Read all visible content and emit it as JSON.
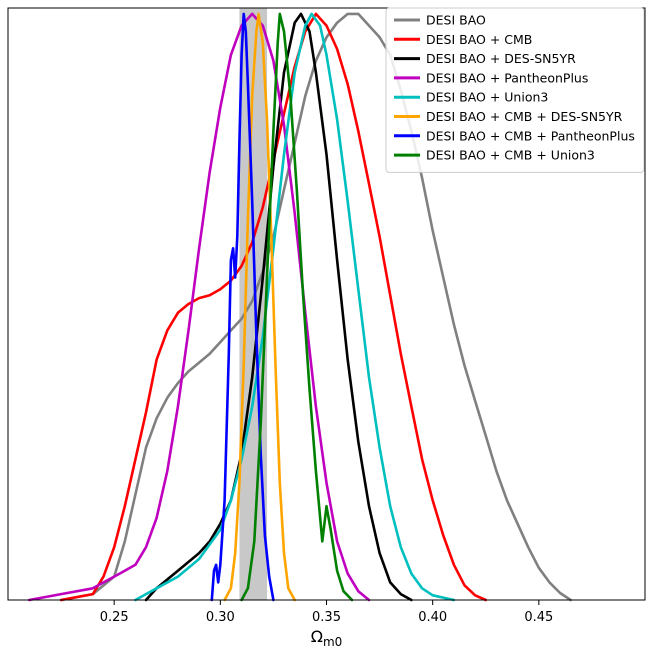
{
  "chart_data": {
    "type": "line",
    "title": "",
    "xlabel": "Ω",
    "xlabel_sub": "m0",
    "ylabel": "",
    "xlim": [
      0.2,
      0.5
    ],
    "ylim": [
      0,
      1.01
    ],
    "xticks": [
      0.25,
      0.3,
      0.35,
      0.4,
      0.45
    ],
    "xtick_labels": [
      "0.25",
      "0.30",
      "0.35",
      "0.40",
      "0.45"
    ],
    "y_axis_visible": false,
    "grid": false,
    "legend_position": "top-right",
    "shaded_band": {
      "x_range": [
        0.309,
        0.322
      ],
      "color": "#c8c8c8"
    },
    "series": [
      {
        "name": "DESI BAO",
        "color": "#808080",
        "points": [
          [
            0.225,
            0.0
          ],
          [
            0.24,
            0.01
          ],
          [
            0.25,
            0.04
          ],
          [
            0.255,
            0.1
          ],
          [
            0.26,
            0.18
          ],
          [
            0.265,
            0.26
          ],
          [
            0.27,
            0.31
          ],
          [
            0.275,
            0.345
          ],
          [
            0.28,
            0.37
          ],
          [
            0.285,
            0.39
          ],
          [
            0.29,
            0.405
          ],
          [
            0.295,
            0.42
          ],
          [
            0.3,
            0.44
          ],
          [
            0.305,
            0.46
          ],
          [
            0.31,
            0.48
          ],
          [
            0.315,
            0.51
          ],
          [
            0.32,
            0.56
          ],
          [
            0.325,
            0.62
          ],
          [
            0.33,
            0.7
          ],
          [
            0.335,
            0.78
          ],
          [
            0.34,
            0.86
          ],
          [
            0.345,
            0.92
          ],
          [
            0.35,
            0.96
          ],
          [
            0.355,
            0.985
          ],
          [
            0.36,
            1.0
          ],
          [
            0.365,
            1.0
          ],
          [
            0.37,
            0.98
          ],
          [
            0.375,
            0.96
          ],
          [
            0.38,
            0.93
          ],
          [
            0.385,
            0.87
          ],
          [
            0.39,
            0.8
          ],
          [
            0.395,
            0.72
          ],
          [
            0.4,
            0.63
          ],
          [
            0.405,
            0.55
          ],
          [
            0.41,
            0.47
          ],
          [
            0.415,
            0.4
          ],
          [
            0.42,
            0.34
          ],
          [
            0.425,
            0.28
          ],
          [
            0.43,
            0.22
          ],
          [
            0.435,
            0.17
          ],
          [
            0.44,
            0.13
          ],
          [
            0.445,
            0.09
          ],
          [
            0.45,
            0.055
          ],
          [
            0.455,
            0.03
          ],
          [
            0.46,
            0.012
          ],
          [
            0.465,
            0.0
          ]
        ]
      },
      {
        "name": "DESI BAO + CMB",
        "color": "#ff0000",
        "points": [
          [
            0.225,
            0.0
          ],
          [
            0.24,
            0.01
          ],
          [
            0.245,
            0.04
          ],
          [
            0.25,
            0.09
          ],
          [
            0.255,
            0.16
          ],
          [
            0.26,
            0.24
          ],
          [
            0.265,
            0.32
          ],
          [
            0.27,
            0.41
          ],
          [
            0.275,
            0.46
          ],
          [
            0.28,
            0.49
          ],
          [
            0.285,
            0.505
          ],
          [
            0.29,
            0.515
          ],
          [
            0.295,
            0.52
          ],
          [
            0.3,
            0.53
          ],
          [
            0.305,
            0.545
          ],
          [
            0.31,
            0.57
          ],
          [
            0.315,
            0.61
          ],
          [
            0.32,
            0.67
          ],
          [
            0.325,
            0.75
          ],
          [
            0.33,
            0.83
          ],
          [
            0.335,
            0.91
          ],
          [
            0.34,
            0.97
          ],
          [
            0.345,
            1.0
          ],
          [
            0.35,
            0.98
          ],
          [
            0.355,
            0.94
          ],
          [
            0.36,
            0.88
          ],
          [
            0.365,
            0.8
          ],
          [
            0.37,
            0.71
          ],
          [
            0.375,
            0.62
          ],
          [
            0.38,
            0.52
          ],
          [
            0.385,
            0.42
          ],
          [
            0.39,
            0.33
          ],
          [
            0.395,
            0.24
          ],
          [
            0.4,
            0.17
          ],
          [
            0.405,
            0.11
          ],
          [
            0.41,
            0.06
          ],
          [
            0.415,
            0.025
          ],
          [
            0.42,
            0.008
          ],
          [
            0.425,
            0.0
          ]
        ]
      },
      {
        "name": "DESI BAO + DES-SN5YR",
        "color": "#000000",
        "points": [
          [
            0.265,
            0.0
          ],
          [
            0.27,
            0.02
          ],
          [
            0.28,
            0.05
          ],
          [
            0.29,
            0.08
          ],
          [
            0.295,
            0.1
          ],
          [
            0.3,
            0.13
          ],
          [
            0.305,
            0.17
          ],
          [
            0.31,
            0.25
          ],
          [
            0.315,
            0.38
          ],
          [
            0.32,
            0.55
          ],
          [
            0.325,
            0.74
          ],
          [
            0.33,
            0.9
          ],
          [
            0.335,
            0.985
          ],
          [
            0.338,
            1.0
          ],
          [
            0.342,
            0.97
          ],
          [
            0.345,
            0.9
          ],
          [
            0.35,
            0.76
          ],
          [
            0.355,
            0.58
          ],
          [
            0.36,
            0.41
          ],
          [
            0.365,
            0.27
          ],
          [
            0.37,
            0.16
          ],
          [
            0.375,
            0.08
          ],
          [
            0.38,
            0.03
          ],
          [
            0.385,
            0.01
          ],
          [
            0.39,
            0.0
          ]
        ]
      },
      {
        "name": "DESI BAO + PantheonPlus",
        "color": "#bf00bf",
        "points": [
          [
            0.21,
            0.0
          ],
          [
            0.225,
            0.01
          ],
          [
            0.24,
            0.02
          ],
          [
            0.245,
            0.03
          ],
          [
            0.25,
            0.04
          ],
          [
            0.255,
            0.05
          ],
          [
            0.26,
            0.06
          ],
          [
            0.265,
            0.09
          ],
          [
            0.27,
            0.14
          ],
          [
            0.275,
            0.22
          ],
          [
            0.28,
            0.33
          ],
          [
            0.285,
            0.46
          ],
          [
            0.29,
            0.6
          ],
          [
            0.295,
            0.73
          ],
          [
            0.3,
            0.84
          ],
          [
            0.305,
            0.93
          ],
          [
            0.31,
            0.98
          ],
          [
            0.315,
            1.0
          ],
          [
            0.32,
            0.98
          ],
          [
            0.325,
            0.92
          ],
          [
            0.33,
            0.81
          ],
          [
            0.335,
            0.66
          ],
          [
            0.34,
            0.49
          ],
          [
            0.345,
            0.33
          ],
          [
            0.35,
            0.2
          ],
          [
            0.355,
            0.1
          ],
          [
            0.36,
            0.045
          ],
          [
            0.365,
            0.015
          ],
          [
            0.37,
            0.0
          ]
        ]
      },
      {
        "name": "DESI BAO + Union3",
        "color": "#00bfbf",
        "points": [
          [
            0.26,
            0.0
          ],
          [
            0.265,
            0.01
          ],
          [
            0.27,
            0.02
          ],
          [
            0.28,
            0.04
          ],
          [
            0.29,
            0.07
          ],
          [
            0.3,
            0.12
          ],
          [
            0.305,
            0.17
          ],
          [
            0.31,
            0.24
          ],
          [
            0.315,
            0.33
          ],
          [
            0.32,
            0.45
          ],
          [
            0.325,
            0.6
          ],
          [
            0.33,
            0.76
          ],
          [
            0.335,
            0.9
          ],
          [
            0.34,
            0.98
          ],
          [
            0.343,
            1.0
          ],
          [
            0.347,
            0.98
          ],
          [
            0.35,
            0.93
          ],
          [
            0.355,
            0.82
          ],
          [
            0.36,
            0.68
          ],
          [
            0.365,
            0.53
          ],
          [
            0.37,
            0.38
          ],
          [
            0.375,
            0.26
          ],
          [
            0.38,
            0.16
          ],
          [
            0.385,
            0.09
          ],
          [
            0.39,
            0.045
          ],
          [
            0.395,
            0.02
          ],
          [
            0.4,
            0.008
          ],
          [
            0.41,
            0.0
          ]
        ]
      },
      {
        "name": "DESI BAO + CMB + DES-SN5YR",
        "color": "#ffa500",
        "points": [
          [
            0.302,
            0.0
          ],
          [
            0.305,
            0.02
          ],
          [
            0.307,
            0.08
          ],
          [
            0.309,
            0.2
          ],
          [
            0.311,
            0.4
          ],
          [
            0.313,
            0.65
          ],
          [
            0.315,
            0.86
          ],
          [
            0.317,
            0.97
          ],
          [
            0.318,
            1.0
          ],
          [
            0.32,
            0.95
          ],
          [
            0.322,
            0.82
          ],
          [
            0.324,
            0.62
          ],
          [
            0.326,
            0.4
          ],
          [
            0.328,
            0.2
          ],
          [
            0.33,
            0.08
          ],
          [
            0.332,
            0.02
          ],
          [
            0.335,
            0.0
          ]
        ]
      },
      {
        "name": "DESI BAO + CMB + PantheonPlus",
        "color": "#0000ff",
        "points": [
          [
            0.296,
            0.0
          ],
          [
            0.297,
            0.05
          ],
          [
            0.298,
            0.06
          ],
          [
            0.299,
            0.03
          ],
          [
            0.3,
            0.06
          ],
          [
            0.302,
            0.17
          ],
          [
            0.304,
            0.42
          ],
          [
            0.305,
            0.58
          ],
          [
            0.306,
            0.6
          ],
          [
            0.307,
            0.55
          ],
          [
            0.308,
            0.62
          ],
          [
            0.309,
            0.78
          ],
          [
            0.31,
            0.93
          ],
          [
            0.311,
            1.0
          ],
          [
            0.312,
            0.97
          ],
          [
            0.313,
            0.88
          ],
          [
            0.315,
            0.68
          ],
          [
            0.317,
            0.45
          ],
          [
            0.319,
            0.25
          ],
          [
            0.321,
            0.11
          ],
          [
            0.323,
            0.04
          ],
          [
            0.325,
            0.0
          ]
        ]
      },
      {
        "name": "DESI BAO + CMB + Union3",
        "color": "#008000",
        "points": [
          [
            0.31,
            0.0
          ],
          [
            0.313,
            0.02
          ],
          [
            0.316,
            0.1
          ],
          [
            0.319,
            0.3
          ],
          [
            0.322,
            0.55
          ],
          [
            0.325,
            0.8
          ],
          [
            0.327,
            0.95
          ],
          [
            0.328,
            1.0
          ],
          [
            0.33,
            0.97
          ],
          [
            0.333,
            0.86
          ],
          [
            0.336,
            0.7
          ],
          [
            0.339,
            0.52
          ],
          [
            0.342,
            0.36
          ],
          [
            0.345,
            0.22
          ],
          [
            0.348,
            0.1
          ],
          [
            0.35,
            0.16
          ],
          [
            0.352,
            0.12
          ],
          [
            0.355,
            0.05
          ],
          [
            0.358,
            0.015
          ],
          [
            0.362,
            0.0
          ]
        ]
      }
    ]
  }
}
